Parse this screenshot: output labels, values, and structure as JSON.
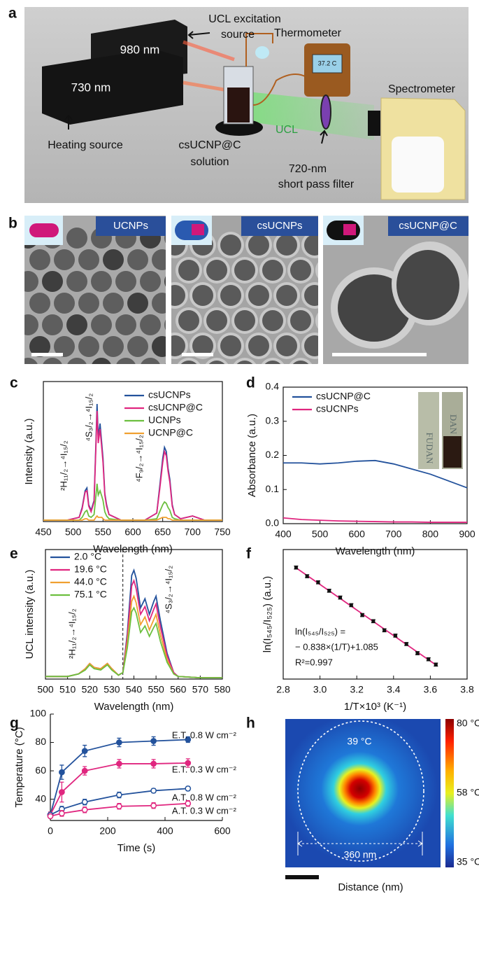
{
  "panel_labels": [
    "a",
    "b",
    "c",
    "d",
    "e",
    "f",
    "g",
    "h"
  ],
  "panel_a": {
    "source_980": "980 nm",
    "source_730": "730 nm",
    "excitation": [
      "UCL excitation",
      "source"
    ],
    "thermometer": "Thermometer",
    "display": "37.2 C",
    "spectrometer": "Spectrometer",
    "heating": "Heating source",
    "sample": [
      "csUCNP@C",
      "solution"
    ],
    "ucl": "UCL",
    "filter": [
      "720-nm",
      "short pass filter"
    ]
  },
  "panel_b": {
    "labels": [
      "UCNPs",
      "csUCNPs",
      "csUCNP@C"
    ]
  },
  "chart_data": [
    {
      "type": "line",
      "x_label": "Wavelength (nm)",
      "y_label": "Intensity (a.u.)",
      "frame": true,
      "legend": "upper right",
      "x": [
        450,
        490,
        510,
        515,
        520,
        523,
        526,
        530,
        535,
        538,
        540,
        542,
        545,
        548,
        550,
        553,
        556,
        560,
        580,
        620,
        640,
        645,
        650,
        653,
        656,
        659,
        662,
        666,
        670,
        680,
        700,
        720,
        750
      ],
      "series": [
        {
          "name": "csUCNPs",
          "color": "#23529c",
          "values": [
            0.01,
            0.01,
            0.03,
            0.1,
            0.22,
            0.24,
            0.12,
            0.08,
            0.15,
            0.55,
            0.84,
            0.6,
            0.7,
            0.55,
            0.45,
            0.2,
            0.12,
            0.05,
            0.01,
            0.01,
            0.06,
            0.25,
            0.45,
            0.53,
            0.5,
            0.38,
            0.3,
            0.12,
            0.05,
            0.02,
            0.04,
            0.01,
            0.01
          ]
        },
        {
          "name": "csUCNP@C",
          "color": "#e0267f",
          "values": [
            0.01,
            0.01,
            0.03,
            0.09,
            0.21,
            0.22,
            0.11,
            0.07,
            0.14,
            0.52,
            0.79,
            0.56,
            0.66,
            0.52,
            0.42,
            0.19,
            0.11,
            0.05,
            0.01,
            0.01,
            0.06,
            0.23,
            0.42,
            0.5,
            0.47,
            0.36,
            0.28,
            0.11,
            0.05,
            0.02,
            0.04,
            0.01,
            0.01
          ]
        },
        {
          "name": "UCNPs",
          "color": "#6cbf3f",
          "values": [
            0.01,
            0.01,
            0.01,
            0.03,
            0.07,
            0.08,
            0.04,
            0.03,
            0.05,
            0.18,
            0.27,
            0.19,
            0.22,
            0.18,
            0.15,
            0.07,
            0.04,
            0.02,
            0.01,
            0.01,
            0.02,
            0.07,
            0.12,
            0.14,
            0.13,
            0.1,
            0.08,
            0.03,
            0.02,
            0.01,
            0.01,
            0.01,
            0.01
          ]
        },
        {
          "name": "UCNP@C",
          "color": "#f0a030",
          "values": [
            0.01,
            0.01,
            0.01,
            0.01,
            0.02,
            0.02,
            0.01,
            0.01,
            0.01,
            0.03,
            0.04,
            0.03,
            0.03,
            0.03,
            0.02,
            0.01,
            0.01,
            0.01,
            0.01,
            0.01,
            0.01,
            0.02,
            0.03,
            0.03,
            0.03,
            0.02,
            0.02,
            0.01,
            0.01,
            0.01,
            0.01,
            0.01,
            0.01
          ]
        }
      ],
      "xlim": [
        450,
        750
      ],
      "xticks": [
        450,
        500,
        550,
        600,
        650,
        700,
        750
      ],
      "ylim": [
        0,
        1
      ],
      "annotations": [
        "²H₁₁/₂→⁴I₁₅/₂",
        "⁴S₃/₂→⁴I₁₅/₂",
        "⁴F₉/₂→⁴I₁₅/₂"
      ]
    },
    {
      "type": "line",
      "x_label": "Wavelength (nm)",
      "y_label": "Absorbance (a.u.)",
      "frame": true,
      "legend": "upper left",
      "x": [
        400,
        450,
        500,
        550,
        600,
        650,
        700,
        750,
        800,
        850,
        900
      ],
      "series": [
        {
          "name": "csUCNP@C",
          "color": "#23529c",
          "values": [
            0.178,
            0.178,
            0.175,
            0.178,
            0.183,
            0.185,
            0.175,
            0.16,
            0.145,
            0.125,
            0.105
          ]
        },
        {
          "name": "csUCNPs",
          "color": "#e0267f",
          "values": [
            0.017,
            0.012,
            0.01,
            0.008,
            0.007,
            0.006,
            0.005,
            0.005,
            0.004,
            0.004,
            0.004
          ]
        }
      ],
      "xlim": [
        400,
        900
      ],
      "xticks": [
        400,
        500,
        600,
        700,
        800,
        900
      ],
      "ylim": [
        0,
        0.4
      ],
      "yticks": [
        {
          "value": 0,
          "label": "0.0"
        },
        0.1,
        0.2,
        0.3,
        0.4
      ],
      "inset_texts": [
        "FUDAN",
        "DAN"
      ]
    },
    {
      "type": "line",
      "x_label": "Wavelength (nm)",
      "y_label": "UCL intensity (a.u.)",
      "frame": true,
      "legend": "upper left",
      "x": [
        500,
        510,
        515,
        518,
        520,
        522,
        525,
        528,
        530,
        533,
        535,
        537,
        539,
        540,
        541,
        543,
        545,
        547,
        549,
        550,
        552,
        555,
        558,
        560,
        570,
        580
      ],
      "series": [
        {
          "name": "2.0 °C",
          "color": "#23529c",
          "values": [
            0.02,
            0.02,
            0.04,
            0.08,
            0.12,
            0.09,
            0.08,
            0.12,
            0.08,
            0.03,
            0.05,
            0.35,
            0.8,
            0.84,
            0.78,
            0.55,
            0.62,
            0.5,
            0.6,
            0.64,
            0.45,
            0.2,
            0.05,
            0.02,
            0.01,
            0.01
          ]
        },
        {
          "name": "19.6 °C",
          "color": "#e0267f",
          "values": [
            0.02,
            0.02,
            0.04,
            0.08,
            0.12,
            0.09,
            0.08,
            0.12,
            0.08,
            0.03,
            0.05,
            0.32,
            0.72,
            0.76,
            0.7,
            0.5,
            0.56,
            0.45,
            0.54,
            0.58,
            0.4,
            0.18,
            0.05,
            0.02,
            0.01,
            0.01
          ]
        },
        {
          "name": "44.0 °C",
          "color": "#f0a030",
          "values": [
            0.02,
            0.02,
            0.04,
            0.08,
            0.12,
            0.09,
            0.08,
            0.12,
            0.08,
            0.03,
            0.05,
            0.28,
            0.6,
            0.64,
            0.59,
            0.42,
            0.48,
            0.38,
            0.46,
            0.5,
            0.34,
            0.15,
            0.04,
            0.02,
            0.01,
            0.01
          ]
        },
        {
          "name": "75.1 °C",
          "color": "#6cbf3f",
          "values": [
            0.02,
            0.02,
            0.04,
            0.07,
            0.11,
            0.08,
            0.07,
            0.11,
            0.07,
            0.03,
            0.05,
            0.24,
            0.52,
            0.55,
            0.51,
            0.36,
            0.41,
            0.33,
            0.4,
            0.43,
            0.29,
            0.13,
            0.04,
            0.02,
            0.01,
            0.01
          ]
        }
      ],
      "xlim": [
        500,
        580
      ],
      "xticks": [
        500,
        510,
        520,
        530,
        540,
        550,
        560,
        570,
        580
      ],
      "ylim": [
        0,
        1
      ],
      "divider_x": 535,
      "annotations": [
        "²H₁₁/₂→⁴I₁₅/₂",
        "⁴S₃/₂→⁴I₁₅/₂"
      ]
    },
    {
      "type": "scatter",
      "x_label": "1/T×10³ (K⁻¹)",
      "y_label": "ln(I₅₄₅/I₅₂₅) (a.u.)",
      "frame": true,
      "x": [
        2.87,
        2.93,
        2.99,
        3.05,
        3.11,
        3.17,
        3.23,
        3.29,
        3.35,
        3.41,
        3.47,
        3.53,
        3.59,
        3.63
      ],
      "values": [
        -1.318,
        -1.375,
        -1.415,
        -1.47,
        -1.515,
        -1.565,
        -1.63,
        -1.67,
        -1.73,
        -1.765,
        -1.82,
        -1.88,
        -1.92,
        -1.955
      ],
      "errors": [
        0.01,
        0.01,
        0.01,
        0.01,
        0.01,
        0.01,
        0.01,
        0.01,
        0.01,
        0.01,
        0.01,
        0.01,
        0.01,
        0.01
      ],
      "color": "#111111",
      "fit_line": {
        "x": [
          2.87,
          3.63
        ],
        "values": [
          -1.32,
          -1.957
        ],
        "color": "#e0267f"
      },
      "xlim": [
        2.8,
        3.8
      ],
      "xticks": [
        2.8,
        {
          "value": 3,
          "label": "3.0"
        },
        3.2,
        3.4,
        3.6,
        3.8
      ],
      "ylim": [
        -2.05,
        -1.2
      ],
      "annotations": [
        "ln(I₅₄₅/I₅₂₅) =",
        "− 0.838×(1/T)+1.085",
        "R²=0.997"
      ]
    },
    {
      "type": "line",
      "x_label": "Time (s)",
      "y_label": "Temperature (°C)",
      "frame": false,
      "markers": true,
      "x": [
        0,
        40,
        120,
        240,
        360,
        480
      ],
      "series": [
        {
          "name": "E.T. 0.8 W cm⁻²",
          "color": "#23529c",
          "marker": "filled",
          "values": [
            29,
            59,
            74,
            80,
            81,
            82
          ],
          "errors": [
            2,
            5,
            4,
            3,
            3,
            2
          ]
        },
        {
          "name": "E.T. 0.3 W cm⁻²",
          "color": "#e0267f",
          "marker": "filled",
          "values": [
            29,
            45,
            60,
            65,
            65,
            65.5
          ],
          "errors": [
            2,
            7,
            3,
            3,
            3,
            3
          ]
        },
        {
          "name": "A.T. 0.8 W cm⁻²",
          "color": "#23529c",
          "marker": "open",
          "values": [
            29,
            33,
            38,
            43,
            46,
            47.5
          ],
          "errors": [
            1,
            2,
            2,
            2,
            1.5,
            1.5
          ]
        },
        {
          "name": "A.T. 0.3 W cm⁻²",
          "color": "#e0267f",
          "marker": "open",
          "values": [
            28,
            30,
            32.5,
            35,
            35.5,
            37
          ],
          "errors": [
            1,
            2,
            2,
            2,
            2,
            2
          ]
        }
      ],
      "xlim": [
        0,
        600
      ],
      "xticks": [
        0,
        200,
        400,
        600
      ],
      "ylim": [
        25,
        100
      ],
      "yticks": [
        40,
        60,
        80,
        100
      ]
    }
  ],
  "panel_h": {
    "ring": "39 °C",
    "width": "360 nm",
    "x_label": "Distance (nm)",
    "colorbar": [
      "80 °C",
      "58 °C",
      "35 °C"
    ]
  }
}
